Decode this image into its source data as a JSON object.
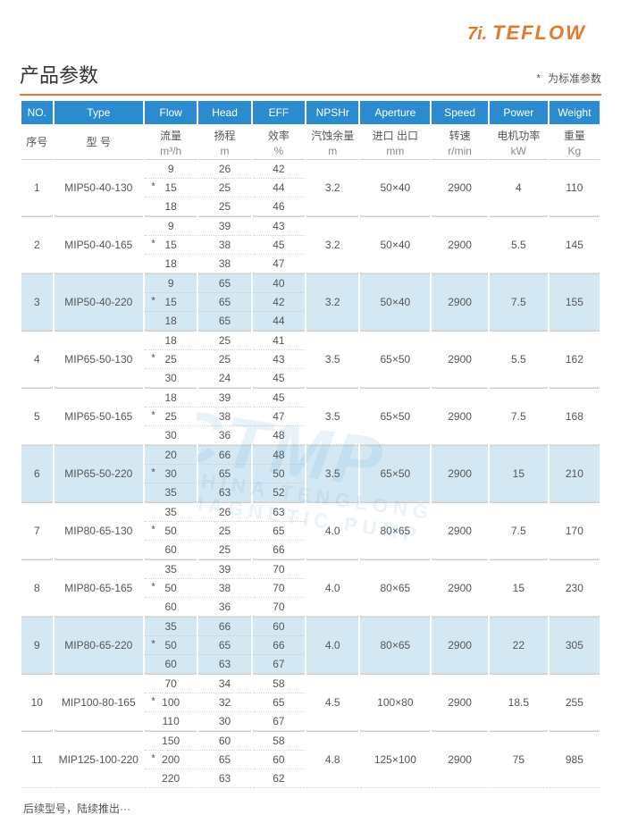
{
  "logo": {
    "brand_color": "#e5782f",
    "text": "TEFLOW"
  },
  "title": "产品参数",
  "legend": {
    "star": "*",
    "text": "为标准参数"
  },
  "watermark": {
    "main": "CTMP",
    "sub": "CHINA TENGLONG MAGNETIC PUMP"
  },
  "header": {
    "no": {
      "en": "NO.",
      "cn": "序号",
      "unit": ""
    },
    "type": {
      "en": "Type",
      "cn": "型  号",
      "unit": ""
    },
    "flow": {
      "en": "Flow",
      "cn": "流量",
      "unit": "m³/h"
    },
    "head": {
      "en": "Head",
      "cn": "扬程",
      "unit": "m"
    },
    "eff": {
      "en": "EFF",
      "cn": "效率",
      "unit": "%"
    },
    "npshr": {
      "en": "NPSHr",
      "cn": "汽蚀余量",
      "unit": "m"
    },
    "ap": {
      "en": "Aperture",
      "cn": "进口 出口",
      "unit": "mm"
    },
    "speed": {
      "en": "Speed",
      "cn": "转速",
      "unit": "r/min"
    },
    "power": {
      "en": "Power",
      "cn": "电机功率",
      "unit": "kW"
    },
    "weight": {
      "en": "Weight",
      "cn": "重量",
      "unit": "Kg"
    }
  },
  "rows": [
    {
      "no": "1",
      "type": "MIP50-40-130",
      "alt": false,
      "npshr": "3.2",
      "ap": "50×40",
      "speed": "2900",
      "power": "4",
      "weight": "110",
      "variants": [
        {
          "flow": "9",
          "head": "26",
          "eff": "42",
          "star": false
        },
        {
          "flow": "15",
          "head": "25",
          "eff": "44",
          "star": true
        },
        {
          "flow": "18",
          "head": "25",
          "eff": "46",
          "star": false
        }
      ]
    },
    {
      "no": "2",
      "type": "MIP50-40-165",
      "alt": false,
      "npshr": "3.2",
      "ap": "50×40",
      "speed": "2900",
      "power": "5.5",
      "weight": "145",
      "variants": [
        {
          "flow": "9",
          "head": "39",
          "eff": "43",
          "star": false
        },
        {
          "flow": "15",
          "head": "38",
          "eff": "45",
          "star": true
        },
        {
          "flow": "18",
          "head": "38",
          "eff": "47",
          "star": false
        }
      ]
    },
    {
      "no": "3",
      "type": "MIP50-40-220",
      "alt": true,
      "npshr": "3.2",
      "ap": "50×40",
      "speed": "2900",
      "power": "7.5",
      "weight": "155",
      "variants": [
        {
          "flow": "9",
          "head": "65",
          "eff": "40",
          "star": false
        },
        {
          "flow": "15",
          "head": "65",
          "eff": "42",
          "star": true
        },
        {
          "flow": "18",
          "head": "65",
          "eff": "44",
          "star": false
        }
      ]
    },
    {
      "no": "4",
      "type": "MIP65-50-130",
      "alt": false,
      "npshr": "3.5",
      "ap": "65×50",
      "speed": "2900",
      "power": "5.5",
      "weight": "162",
      "variants": [
        {
          "flow": "18",
          "head": "25",
          "eff": "41",
          "star": false
        },
        {
          "flow": "25",
          "head": "25",
          "eff": "43",
          "star": true
        },
        {
          "flow": "30",
          "head": "24",
          "eff": "45",
          "star": false
        }
      ]
    },
    {
      "no": "5",
      "type": "MIP65-50-165",
      "alt": false,
      "npshr": "3.5",
      "ap": "65×50",
      "speed": "2900",
      "power": "7.5",
      "weight": "168",
      "variants": [
        {
          "flow": "18",
          "head": "39",
          "eff": "45",
          "star": false
        },
        {
          "flow": "25",
          "head": "38",
          "eff": "47",
          "star": true
        },
        {
          "flow": "30",
          "head": "36",
          "eff": "48",
          "star": false
        }
      ]
    },
    {
      "no": "6",
      "type": "MIP65-50-220",
      "alt": true,
      "npshr": "3.5",
      "ap": "65×50",
      "speed": "2900",
      "power": "15",
      "weight": "210",
      "variants": [
        {
          "flow": "20",
          "head": "66",
          "eff": "48",
          "star": false
        },
        {
          "flow": "30",
          "head": "65",
          "eff": "50",
          "star": true
        },
        {
          "flow": "35",
          "head": "63",
          "eff": "52",
          "star": false
        }
      ]
    },
    {
      "no": "7",
      "type": "MIP80-65-130",
      "alt": false,
      "npshr": "4.0",
      "ap": "80×65",
      "speed": "2900",
      "power": "7.5",
      "weight": "170",
      "variants": [
        {
          "flow": "35",
          "head": "26",
          "eff": "63",
          "star": false
        },
        {
          "flow": "50",
          "head": "25",
          "eff": "65",
          "star": true
        },
        {
          "flow": "60",
          "head": "25",
          "eff": "66",
          "star": false
        }
      ]
    },
    {
      "no": "8",
      "type": "MIP80-65-165",
      "alt": false,
      "npshr": "4.0",
      "ap": "80×65",
      "speed": "2900",
      "power": "15",
      "weight": "230",
      "variants": [
        {
          "flow": "35",
          "head": "39",
          "eff": "70",
          "star": false
        },
        {
          "flow": "50",
          "head": "38",
          "eff": "70",
          "star": true
        },
        {
          "flow": "60",
          "head": "36",
          "eff": "70",
          "star": false
        }
      ]
    },
    {
      "no": "9",
      "type": "MIP80-65-220",
      "alt": true,
      "npshr": "4.0",
      "ap": "80×65",
      "speed": "2900",
      "power": "22",
      "weight": "305",
      "variants": [
        {
          "flow": "35",
          "head": "66",
          "eff": "60",
          "star": false
        },
        {
          "flow": "50",
          "head": "65",
          "eff": "66",
          "star": true
        },
        {
          "flow": "60",
          "head": "63",
          "eff": "67",
          "star": false
        }
      ]
    },
    {
      "no": "10",
      "type": "MIP100-80-165",
      "alt": false,
      "npshr": "4.5",
      "ap": "100×80",
      "speed": "2900",
      "power": "18.5",
      "weight": "255",
      "variants": [
        {
          "flow": "70",
          "head": "34",
          "eff": "58",
          "star": false
        },
        {
          "flow": "100",
          "head": "32",
          "eff": "65",
          "star": true
        },
        {
          "flow": "110",
          "head": "30",
          "eff": "67",
          "star": false
        }
      ]
    },
    {
      "no": "11",
      "type": "MIP125-100-220",
      "alt": false,
      "npshr": "4.8",
      "ap": "125×100",
      "speed": "2900",
      "power": "75",
      "weight": "985",
      "variants": [
        {
          "flow": "150",
          "head": "60",
          "eff": "58",
          "star": false
        },
        {
          "flow": "200",
          "head": "65",
          "eff": "60",
          "star": true
        },
        {
          "flow": "220",
          "head": "63",
          "eff": "62",
          "star": false
        }
      ]
    }
  ],
  "footnote": "后续型号，陆续推出···"
}
